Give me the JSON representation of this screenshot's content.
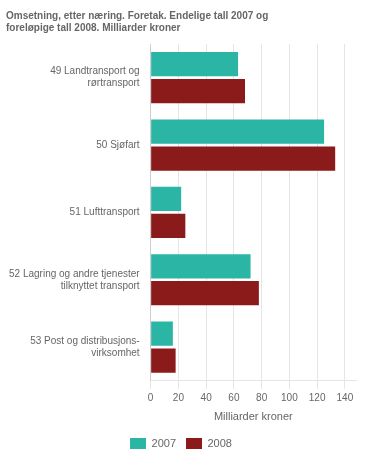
{
  "chart_data": {
    "type": "bar",
    "orientation": "horizontal",
    "title": "Omsetning, etter næring. Foretak. Endelige tall 2007 og\nforeløpige tall 2008. Milliarder kroner",
    "categories": [
      "49 Landtransport og\nrørtransport",
      "50 Sjøfart",
      "51 Lufttransport",
      "52 Lagring og andre tjenester\ntilknyttet transport",
      "53 Post og distribusjons-\nvirksomhet"
    ],
    "series": [
      {
        "name": "2007",
        "color": "#2ab5a5",
        "values": [
          63,
          125,
          22,
          72,
          16
        ]
      },
      {
        "name": "2008",
        "color": "#8b1a1a",
        "values": [
          68,
          133,
          25,
          78,
          18
        ]
      }
    ],
    "xlabel": "Milliarder kroner",
    "xlim": [
      0,
      148
    ],
    "xticks": [
      0,
      20,
      40,
      60,
      80,
      100,
      120,
      140
    ],
    "grid": true,
    "legend": "bottom"
  }
}
